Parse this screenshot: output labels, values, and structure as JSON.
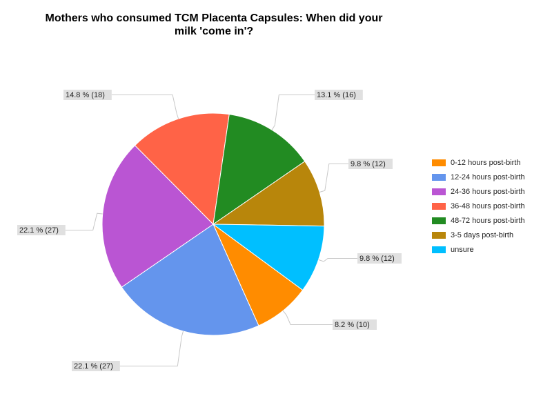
{
  "chart_data": {
    "type": "pie",
    "title_lines": [
      "Mothers who consumed TCM Placenta Capsules: When did your",
      "milk 'come in'?"
    ],
    "slices": [
      {
        "label": "0-12 hours post-birth",
        "value": 10,
        "percent_label": "8.2 % (10)",
        "color": "#ff8c00"
      },
      {
        "label": "12-24 hours post-birth",
        "value": 27,
        "percent_label": "22.1 % (27)",
        "color": "#6495ed"
      },
      {
        "label": "24-36 hours post-birth",
        "value": 27,
        "percent_label": "22.1 % (27)",
        "color": "#ba55d3"
      },
      {
        "label": "36-48 hours post-birth",
        "value": 18,
        "percent_label": "14.8 % (18)",
        "color": "#ff6347"
      },
      {
        "label": "48-72 hours post-birth",
        "value": 16,
        "percent_label": "13.1 % (16)",
        "color": "#228b22"
      },
      {
        "label": "3-5 days post-birth",
        "value": 12,
        "percent_label": "9.8 % (12)",
        "color": "#b8860b"
      },
      {
        "label": "unsure",
        "value": 12,
        "percent_label": "9.8 % (12)",
        "color": "#00bfff"
      }
    ],
    "legend_position": "right"
  }
}
